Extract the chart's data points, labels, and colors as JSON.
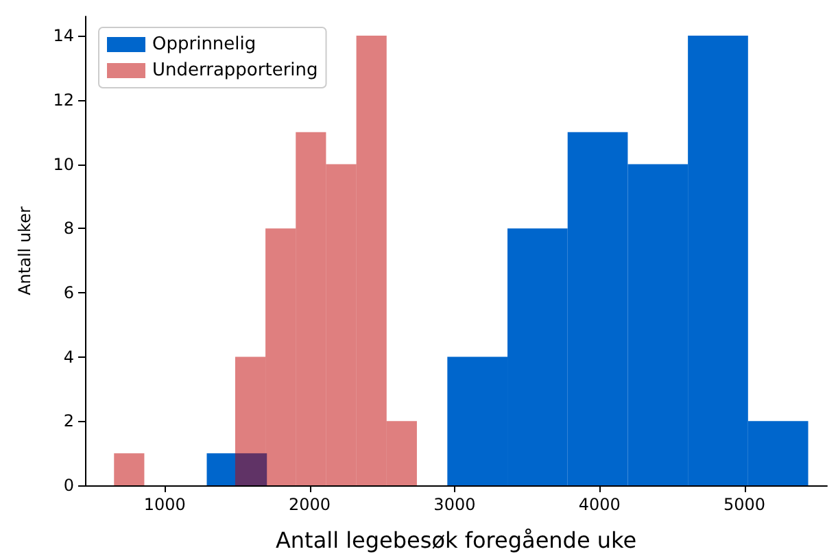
{
  "chart_data": {
    "type": "histogram",
    "xlabel": "Antall legebesøk foregående uke",
    "ylabel": "Antall uker",
    "bins": [
      1290,
      1705,
      2120,
      2535,
      2950,
      3365,
      3780,
      4195,
      4610,
      5025,
      5440
    ],
    "series": [
      {
        "name": "Opprinnelig",
        "color": "#0066cc",
        "values": [
          1,
          0,
          0,
          0,
          4,
          8,
          11,
          10,
          14,
          2
        ]
      },
      {
        "name": "Underrapportering",
        "color": "#c00000",
        "bins": [
          650,
          859,
          1068,
          1277,
          1486,
          1695,
          1904,
          2113,
          2322,
          2531,
          2740
        ],
        "values": [
          1,
          0,
          0,
          0,
          4,
          8,
          11,
          10,
          14,
          2
        ]
      }
    ],
    "xlim": [
      450,
      5570
    ],
    "xticks": [
      1000,
      2000,
      3000,
      4000,
      5000
    ],
    "ylim": [
      0,
      14.6
    ],
    "yticks": [
      0,
      2,
      4,
      6,
      8,
      10,
      12,
      14
    ],
    "grid": false,
    "legend": "top left"
  }
}
